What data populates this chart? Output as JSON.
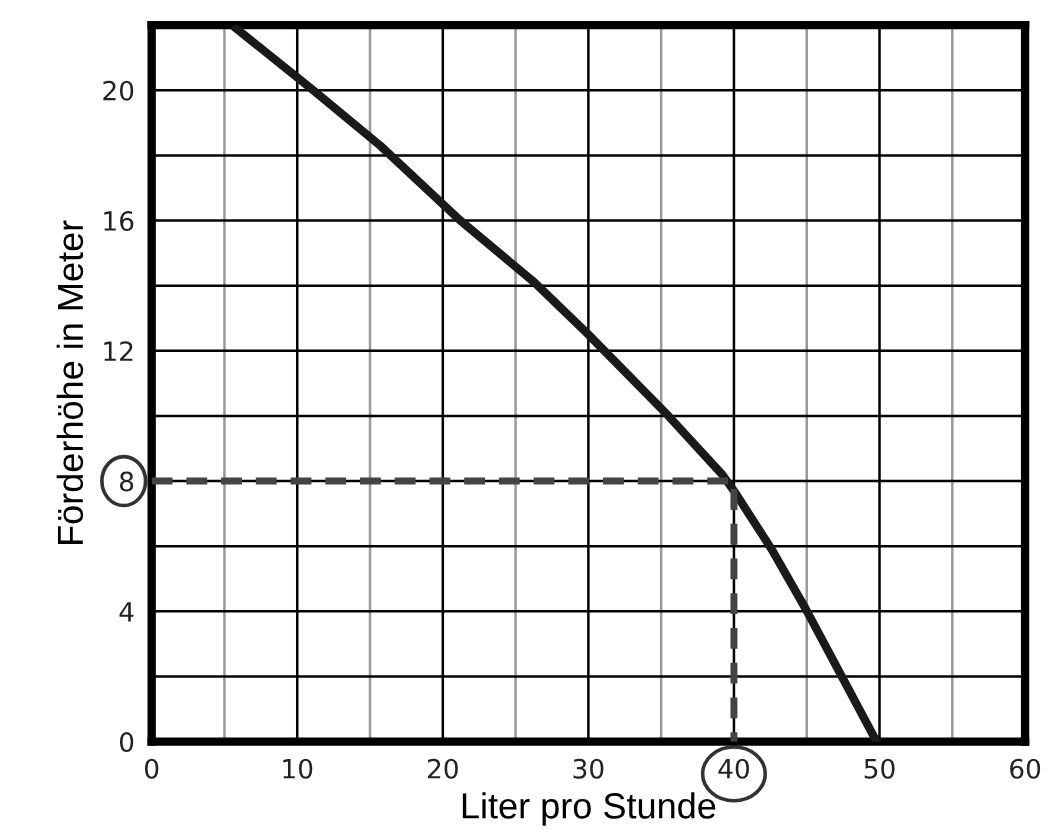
{
  "chart_data": {
    "type": "line",
    "xlabel": "Liter pro Stunde",
    "ylabel": "Förderhöhe in Meter",
    "xlim": [
      0,
      60
    ],
    "ylim": [
      0,
      22
    ],
    "xticks": [
      0,
      10,
      20,
      30,
      40,
      50,
      60
    ],
    "yticks": [
      0,
      4,
      8,
      12,
      16,
      20
    ],
    "grid": true,
    "marker": "none",
    "series": [
      {
        "color": "#1a1a1a",
        "line_style": "solid",
        "x": [
          5.8,
          11.1,
          15.7,
          21.2,
          26.3,
          30,
          35.5,
          39.2,
          40,
          42.6,
          44.9,
          49.8
        ],
        "values": [
          21.9,
          20,
          18.3,
          16,
          14.1,
          12.5,
          10,
          8.2,
          7.7,
          5.9,
          4.1,
          0
        ]
      },
      {
        "color": "#444444",
        "line_style": "dashed",
        "x": [
          0,
          40,
          40
        ],
        "values": [
          8,
          8,
          0
        ]
      }
    ]
  }
}
